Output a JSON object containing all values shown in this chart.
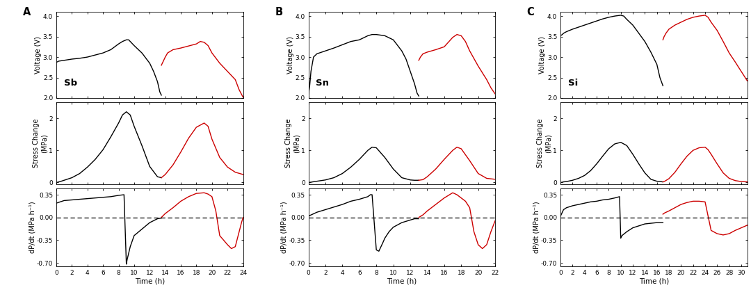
{
  "panels": [
    "A",
    "B",
    "C"
  ],
  "labels": [
    "Sb",
    "Sn",
    "Si"
  ],
  "colors": {
    "charge": "#000000",
    "discharge": "#cc0000"
  },
  "voltage_ylim": [
    2.0,
    4.1
  ],
  "voltage_yticks": [
    2.0,
    2.5,
    3.0,
    3.5,
    4.0
  ],
  "stress_ylim": [
    -0.05,
    2.5
  ],
  "stress_yticks": [
    0.0,
    1.0,
    2.0
  ],
  "dpdt_ylim": [
    -0.75,
    0.45
  ],
  "dpdt_yticks": [
    -0.7,
    -0.35,
    0.0,
    0.35
  ],
  "xlabel": "Time (h)",
  "ylabel_voltage": "Voltage (V)",
  "ylabel_stress": "Stress Change\n(MPa)",
  "ylabel_dpdt": "dP/dt (MPa h⁻¹)",
  "background": "#ffffff",
  "lw": 1.0
}
